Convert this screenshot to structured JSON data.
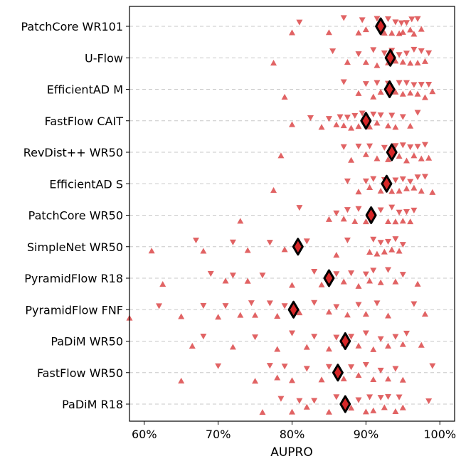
{
  "chart_data": {
    "type": "scatter",
    "title": "",
    "xlabel": "AUPRO",
    "ylabel": "",
    "xlim": [
      0.58,
      1.02
    ],
    "x_tick_values": [
      0.6,
      0.7,
      0.8,
      0.9,
      1.0
    ],
    "x_tick_labels": [
      "60%",
      "70%",
      "80%",
      "90%",
      "100%"
    ],
    "grid": "horizontal dashed",
    "marker_color": "#d62728",
    "mean_marker_color": "#d62728",
    "mean_marker_edge": "#000000",
    "models": [
      {
        "name": "PatchCore WR101",
        "mean": 0.92,
        "points": [
          0.8,
          0.81,
          0.85,
          0.87,
          0.89,
          0.895,
          0.9,
          0.915,
          0.925,
          0.93,
          0.935,
          0.94,
          0.945,
          0.948,
          0.95,
          0.955,
          0.96,
          0.962,
          0.965,
          0.97,
          0.975
        ]
      },
      {
        "name": "U-Flow",
        "mean": 0.933,
        "points": [
          0.775,
          0.855,
          0.875,
          0.89,
          0.9,
          0.91,
          0.915,
          0.925,
          0.93,
          0.935,
          0.94,
          0.945,
          0.95,
          0.955,
          0.96,
          0.965,
          0.97,
          0.975,
          0.98,
          0.985
        ]
      },
      {
        "name": "EfficientAD M",
        "mean": 0.932,
        "points": [
          0.79,
          0.87,
          0.89,
          0.9,
          0.91,
          0.915,
          0.92,
          0.93,
          0.94,
          0.945,
          0.95,
          0.955,
          0.96,
          0.965,
          0.97,
          0.975,
          0.98,
          0.985,
          0.99
        ]
      },
      {
        "name": "FastFlow CAIT",
        "mean": 0.9,
        "points": [
          0.8,
          0.825,
          0.84,
          0.85,
          0.86,
          0.865,
          0.87,
          0.875,
          0.88,
          0.885,
          0.89,
          0.895,
          0.905,
          0.91,
          0.915,
          0.92,
          0.93,
          0.935,
          0.94,
          0.95,
          0.96,
          0.97
        ]
      },
      {
        "name": "RevDist++ WR50",
        "mean": 0.935,
        "points": [
          0.785,
          0.87,
          0.88,
          0.89,
          0.9,
          0.905,
          0.915,
          0.925,
          0.93,
          0.94,
          0.945,
          0.95,
          0.955,
          0.96,
          0.965,
          0.97,
          0.975,
          0.98,
          0.985
        ]
      },
      {
        "name": "EfficientAD S",
        "mean": 0.928,
        "points": [
          0.775,
          0.875,
          0.89,
          0.9,
          0.905,
          0.91,
          0.92,
          0.925,
          0.935,
          0.94,
          0.945,
          0.95,
          0.955,
          0.96,
          0.965,
          0.97,
          0.975,
          0.98,
          0.99
        ]
      },
      {
        "name": "PatchCore WR50",
        "mean": 0.907,
        "points": [
          0.73,
          0.81,
          0.85,
          0.86,
          0.87,
          0.875,
          0.885,
          0.89,
          0.9,
          0.92,
          0.93,
          0.935,
          0.94,
          0.945,
          0.95,
          0.955,
          0.96,
          0.965
        ]
      },
      {
        "name": "SimpleNet WR50",
        "mean": 0.808,
        "points": [
          0.61,
          0.67,
          0.68,
          0.72,
          0.74,
          0.77,
          0.79,
          0.82,
          0.86,
          0.875,
          0.905,
          0.91,
          0.915,
          0.92,
          0.925,
          0.93,
          0.935,
          0.94,
          0.945,
          0.95
        ]
      },
      {
        "name": "PyramidFlow R18",
        "mean": 0.85,
        "points": [
          0.625,
          0.69,
          0.71,
          0.72,
          0.74,
          0.76,
          0.8,
          0.83,
          0.84,
          0.86,
          0.87,
          0.88,
          0.89,
          0.9,
          0.905,
          0.91,
          0.92,
          0.93,
          0.94,
          0.95,
          0.97
        ]
      },
      {
        "name": "PyramidFlow FNF",
        "mean": 0.802,
        "points": [
          0.58,
          0.62,
          0.65,
          0.68,
          0.7,
          0.71,
          0.73,
          0.745,
          0.75,
          0.77,
          0.78,
          0.79,
          0.81,
          0.83,
          0.85,
          0.86,
          0.875,
          0.89,
          0.9,
          0.915,
          0.93,
          0.965,
          0.98
        ]
      },
      {
        "name": "PaDiM WR50",
        "mean": 0.872,
        "points": [
          0.665,
          0.68,
          0.72,
          0.75,
          0.78,
          0.8,
          0.82,
          0.83,
          0.85,
          0.86,
          0.87,
          0.88,
          0.89,
          0.9,
          0.91,
          0.92,
          0.93,
          0.94,
          0.95,
          0.955,
          0.975
        ]
      },
      {
        "name": "FastFlow WR50",
        "mean": 0.862,
        "points": [
          0.65,
          0.7,
          0.75,
          0.77,
          0.78,
          0.79,
          0.8,
          0.82,
          0.84,
          0.85,
          0.87,
          0.88,
          0.89,
          0.9,
          0.91,
          0.92,
          0.93,
          0.94,
          0.95,
          0.99
        ]
      },
      {
        "name": "PaDiM R18",
        "mean": 0.872,
        "points": [
          0.76,
          0.785,
          0.8,
          0.81,
          0.82,
          0.83,
          0.85,
          0.86,
          0.88,
          0.89,
          0.9,
          0.905,
          0.91,
          0.92,
          0.925,
          0.93,
          0.94,
          0.945,
          0.95,
          0.985
        ]
      }
    ]
  }
}
